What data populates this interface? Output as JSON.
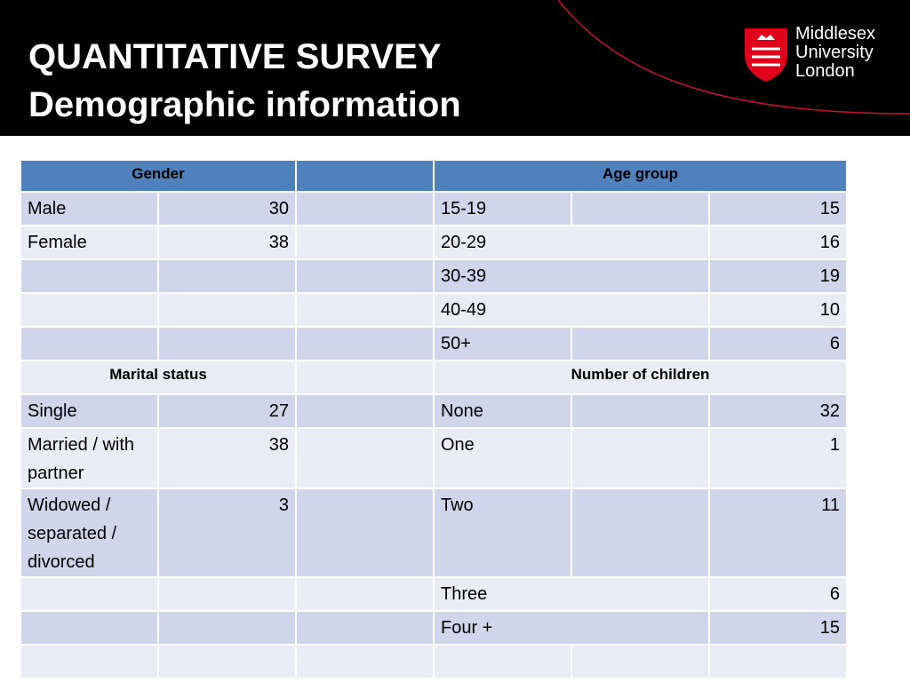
{
  "header": {
    "title_line1": "QUANTITATIVE SURVEY",
    "title_line2": "Demographic information"
  },
  "logo": {
    "lines": [
      "Middlesex",
      "University",
      "London"
    ]
  },
  "table": {
    "rows": [
      [
        "Gender",
        "Age group"
      ],
      [
        "Male",
        30,
        "15-19",
        15
      ],
      [
        "Female",
        38,
        "20-29",
        16
      ],
      [
        "30-39",
        19
      ],
      [
        "40-49",
        10
      ],
      [
        "50+",
        6
      ],
      [
        "Marital status",
        "Number of children"
      ],
      [
        "Single",
        27,
        "None",
        32
      ],
      [
        "Married / with partner",
        38,
        "One",
        1
      ],
      [
        "Widowed / separated / divorced",
        3,
        "Two",
        11
      ],
      [
        "Three",
        6
      ],
      [
        "Four +",
        15
      ]
    ]
  }
}
